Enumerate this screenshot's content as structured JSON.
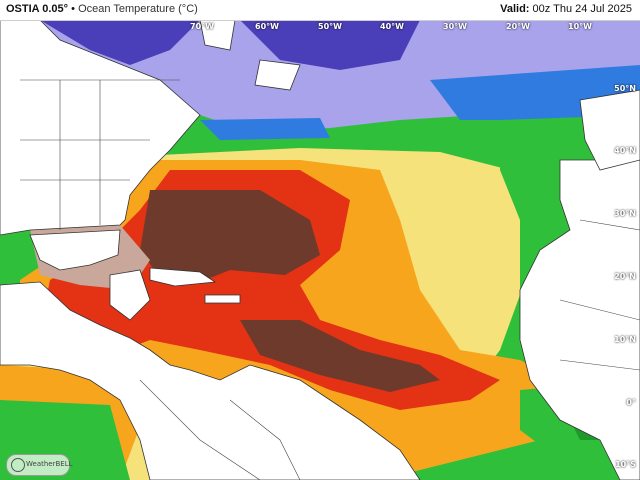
{
  "header": {
    "product": "OSTIA 0.05°",
    "separator": "•",
    "variable": "Ocean Temperature (°C)",
    "valid_label": "Valid:",
    "valid_time": "00z Thu 24 Jul 2025"
  },
  "graticule": {
    "lat_labels": [
      "50°N",
      "40°N",
      "30°N",
      "20°N",
      "10°N",
      "0°",
      "10°S"
    ],
    "lon_labels": [
      "70°W",
      "60°W",
      "50°W",
      "40°W",
      "30°W",
      "20°W",
      "10°W"
    ]
  },
  "logo": {
    "text": "WeatherBELL",
    "icon": "weatherbell-logo-icon"
  },
  "colors": {
    "cold_blue": "#4a3fb8",
    "cool_lavender": "#a9a3ec",
    "mild_blue": "#2f7be0",
    "green": "#2fbf3a",
    "yellow": "#f6e27a",
    "orange": "#f7a51c",
    "red": "#e33214",
    "hot_brown": "#6e3a2c",
    "pale_brown": "#c9a79a",
    "land": "#ffffff",
    "border": "#333333"
  }
}
